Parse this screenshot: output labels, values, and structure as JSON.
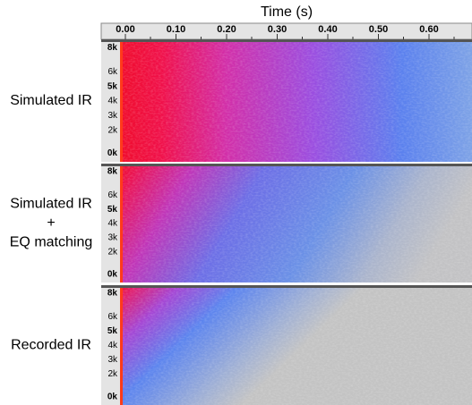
{
  "axis": {
    "title": "Time (s)",
    "ticks": [
      "0.00",
      "0.10",
      "0.20",
      "0.30",
      "0.40",
      "0.50",
      "0.60"
    ]
  },
  "panels": [
    {
      "label": [
        "Simulated IR"
      ],
      "freq_ticks": [
        "8k",
        "6k",
        "5k",
        "4k",
        "3k",
        "2k",
        "0k"
      ]
    },
    {
      "label": [
        "Simulated IR",
        "+",
        "EQ matching"
      ],
      "freq_ticks": [
        "8k",
        "6k",
        "5k",
        "4k",
        "3k",
        "2k",
        "0k"
      ]
    },
    {
      "label": [
        "Recorded IR"
      ],
      "freq_ticks": [
        "8k",
        "6k",
        "5k",
        "4k",
        "3k",
        "2k",
        "0k"
      ]
    }
  ]
}
